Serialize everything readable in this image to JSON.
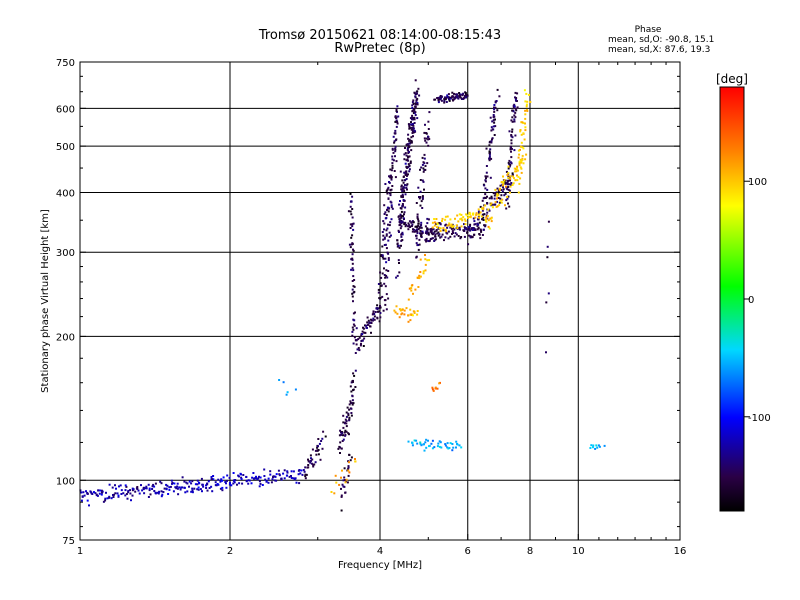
{
  "chart_data": {
    "type": "scatter",
    "title": "Tromsø 20150621 08:14:00-08:15:43",
    "subtitle": "RwPretec (8p)",
    "xlabel": "Frequency [MHz]",
    "ylabel": "Stationary phase Virtual Height [km]",
    "x_scale": "log",
    "y_scale": "log",
    "xlim": [
      1,
      16
    ],
    "ylim": [
      75,
      750
    ],
    "x_ticks": [
      1,
      2,
      4,
      6,
      8,
      10,
      16
    ],
    "x_tick_labels": [
      "1",
      "2",
      "4",
      "6",
      "8",
      "10",
      "16"
    ],
    "y_ticks": [
      75,
      100,
      200,
      300,
      400,
      500,
      600,
      750
    ],
    "y_tick_labels": [
      "75",
      "100",
      "200",
      "300",
      "400",
      "500",
      "600",
      "750"
    ],
    "grid": true,
    "grid_x": [
      2,
      4,
      6,
      8,
      10
    ],
    "grid_y": [
      100,
      200,
      300,
      400,
      500,
      600
    ],
    "phase_box": {
      "title": "Phase",
      "line1": "mean, sd,O: -90.8, 15.1",
      "line2": "mean, sd,X: 87.6, 19.3"
    },
    "colorbar": {
      "label": "[deg]",
      "range": [
        -180,
        180
      ],
      "ticks": [
        100,
        0,
        -100
      ],
      "tick_labels": [
        "100",
        "0",
        "-100"
      ]
    },
    "series": [
      {
        "segments": [
          {
            "x0": 1.0,
            "y0": 93,
            "x1": 1.5,
            "y1": 96,
            "n": 110,
            "phase": -125,
            "sy": 1.8
          },
          {
            "x0": 1.5,
            "y0": 96,
            "x1": 2.0,
            "y1": 99,
            "n": 90,
            "phase": -120,
            "sy": 1.8
          },
          {
            "x0": 2.0,
            "y0": 99,
            "x1": 2.8,
            "y1": 103,
            "n": 90,
            "phase": -120,
            "sy": 1.8
          },
          {
            "x0": 2.8,
            "y0": 104,
            "x1": 3.1,
            "y1": 120,
            "n": 40,
            "phase": -150,
            "sy": 3
          },
          {
            "x0": 3.3,
            "y0": 118,
            "x1": 3.45,
            "y1": 135,
            "n": 35,
            "phase": -150,
            "sy": 4
          },
          {
            "x0": 3.45,
            "y0": 130,
            "x1": 3.55,
            "y1": 165,
            "n": 35,
            "phase": -155,
            "sy": 4
          },
          {
            "x0": 3.35,
            "y0": 90,
            "x1": 3.5,
            "y1": 112,
            "n": 25,
            "phase": -155,
            "sy": 3
          },
          {
            "x0": 3.55,
            "y0": 195,
            "x1": 3.5,
            "y1": 390,
            "n": 55,
            "phase": -150,
            "sy": 6
          },
          {
            "x0": 3.55,
            "y0": 190,
            "x1": 4.1,
            "y1": 235,
            "n": 80,
            "phase": -150,
            "sy": 5
          },
          {
            "x0": 4.0,
            "y0": 240,
            "x1": 4.2,
            "y1": 440,
            "n": 50,
            "phase": -150,
            "sy": 8
          },
          {
            "x0": 4.1,
            "y0": 240,
            "x1": 4.35,
            "y1": 600,
            "n": 90,
            "phase": -150,
            "sy": 10
          },
          {
            "x0": 4.35,
            "y0": 300,
            "x1": 4.75,
            "y1": 640,
            "n": 220,
            "phase": -150,
            "sy": 25
          },
          {
            "x0": 4.75,
            "y0": 300,
            "x1": 5.0,
            "y1": 560,
            "n": 60,
            "phase": -150,
            "sy": 15
          },
          {
            "x0": 4.4,
            "y0": 350,
            "x1": 5.2,
            "y1": 320,
            "n": 70,
            "phase": -150,
            "sy": 6
          },
          {
            "x0": 5.2,
            "y0": 625,
            "x1": 6.0,
            "y1": 640,
            "n": 90,
            "phase": -150,
            "sy": 5
          },
          {
            "x0": 4.7,
            "y0": 330,
            "x1": 6.5,
            "y1": 335,
            "n": 130,
            "phase": -150,
            "sy": 8
          },
          {
            "x0": 6.0,
            "y0": 330,
            "x1": 7.4,
            "y1": 430,
            "n": 100,
            "phase": -150,
            "sy": 10
          },
          {
            "x0": 6.5,
            "y0": 400,
            "x1": 6.9,
            "y1": 640,
            "n": 60,
            "phase": -150,
            "sy": 15
          },
          {
            "x0": 7.2,
            "y0": 380,
            "x1": 7.5,
            "y1": 640,
            "n": 70,
            "phase": -150,
            "sy": 15
          },
          {
            "x0": 4.3,
            "y0": 225,
            "x1": 4.75,
            "y1": 225,
            "n": 30,
            "phase": 105,
            "sy": 4
          },
          {
            "x0": 4.6,
            "y0": 240,
            "x1": 5.0,
            "y1": 290,
            "n": 25,
            "phase": 105,
            "sy": 6
          },
          {
            "x0": 5.1,
            "y0": 340,
            "x1": 6.5,
            "y1": 360,
            "n": 70,
            "phase": 100,
            "sy": 6
          },
          {
            "x0": 6.5,
            "y0": 350,
            "x1": 7.8,
            "y1": 470,
            "n": 70,
            "phase": 100,
            "sy": 15
          },
          {
            "x0": 7.6,
            "y0": 420,
            "x1": 7.9,
            "y1": 640,
            "n": 45,
            "phase": 100,
            "sy": 15
          },
          {
            "x0": 4.6,
            "y0": 120,
            "x1": 5.8,
            "y1": 118,
            "n": 45,
            "phase": -55,
            "sy": 1.5
          },
          {
            "x0": 3.2,
            "y0": 95,
            "x1": 3.6,
            "y1": 112,
            "n": 15,
            "phase": 110,
            "sy": 3
          },
          {
            "x0": 5.1,
            "y0": 155,
            "x1": 5.3,
            "y1": 160,
            "n": 8,
            "phase": 130,
            "sy": 2
          },
          {
            "x0": 10.5,
            "y0": 118,
            "x1": 11.2,
            "y1": 118,
            "n": 10,
            "phase": -55,
            "sy": 1
          },
          {
            "x0": 8.7,
            "y0": 200,
            "x1": 8.7,
            "y1": 350,
            "n": 6,
            "phase": -150,
            "sy": 20
          },
          {
            "x0": 2.5,
            "y0": 160,
            "x1": 2.7,
            "y1": 150,
            "n": 5,
            "phase": -60,
            "sy": 5
          }
        ]
      }
    ]
  }
}
